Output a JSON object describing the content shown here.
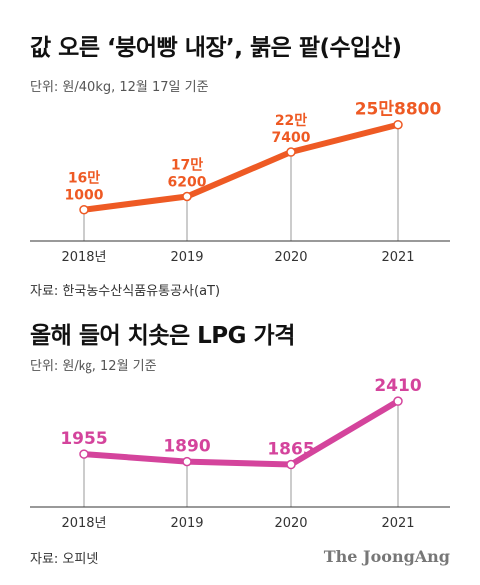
{
  "charts": [
    {
      "title": "값 오른 ‘붕어빵 내장’, 붉은 팥(수입산)",
      "unit": "단위: 원/40kg, 12월 17일 기준",
      "source": "자료: 한국농수산식품유통공사(aT)",
      "color": "#ee5a24"
    },
    {
      "title": "올해 들어 치솟은 LPG 가격",
      "unit": "단위: 원/㎏, 12월 기준",
      "source": "자료: 오피넷",
      "color": "#d4449c"
    }
  ],
  "brand": "The JoongAng",
  "chart_data": [
    {
      "type": "line",
      "title": "값 오른 ‘붕어빵 내장’, 붉은 팥(수입산)",
      "categories": [
        "2018년",
        "2019",
        "2020",
        "2021"
      ],
      "values": [
        161000,
        176200,
        227400,
        258800
      ],
      "value_labels": [
        [
          "16만",
          "1000"
        ],
        [
          "17만",
          "6200"
        ],
        [
          "22만",
          "7400"
        ],
        [
          "25만8800"
        ]
      ],
      "ylim": [
        125000,
        270000
      ],
      "grid": false,
      "color": "#ee5a24"
    },
    {
      "type": "line",
      "title": "올해 들어 치솟은 LPG 가격",
      "categories": [
        "2018년",
        "2019",
        "2020",
        "2021"
      ],
      "values": [
        1955,
        1890,
        1865,
        2410
      ],
      "value_labels": [
        [
          "1955"
        ],
        [
          "1890"
        ],
        [
          "1865"
        ],
        [
          "2410"
        ]
      ],
      "ylim": [
        1500,
        2480
      ],
      "grid": false,
      "color": "#d4449c"
    }
  ]
}
